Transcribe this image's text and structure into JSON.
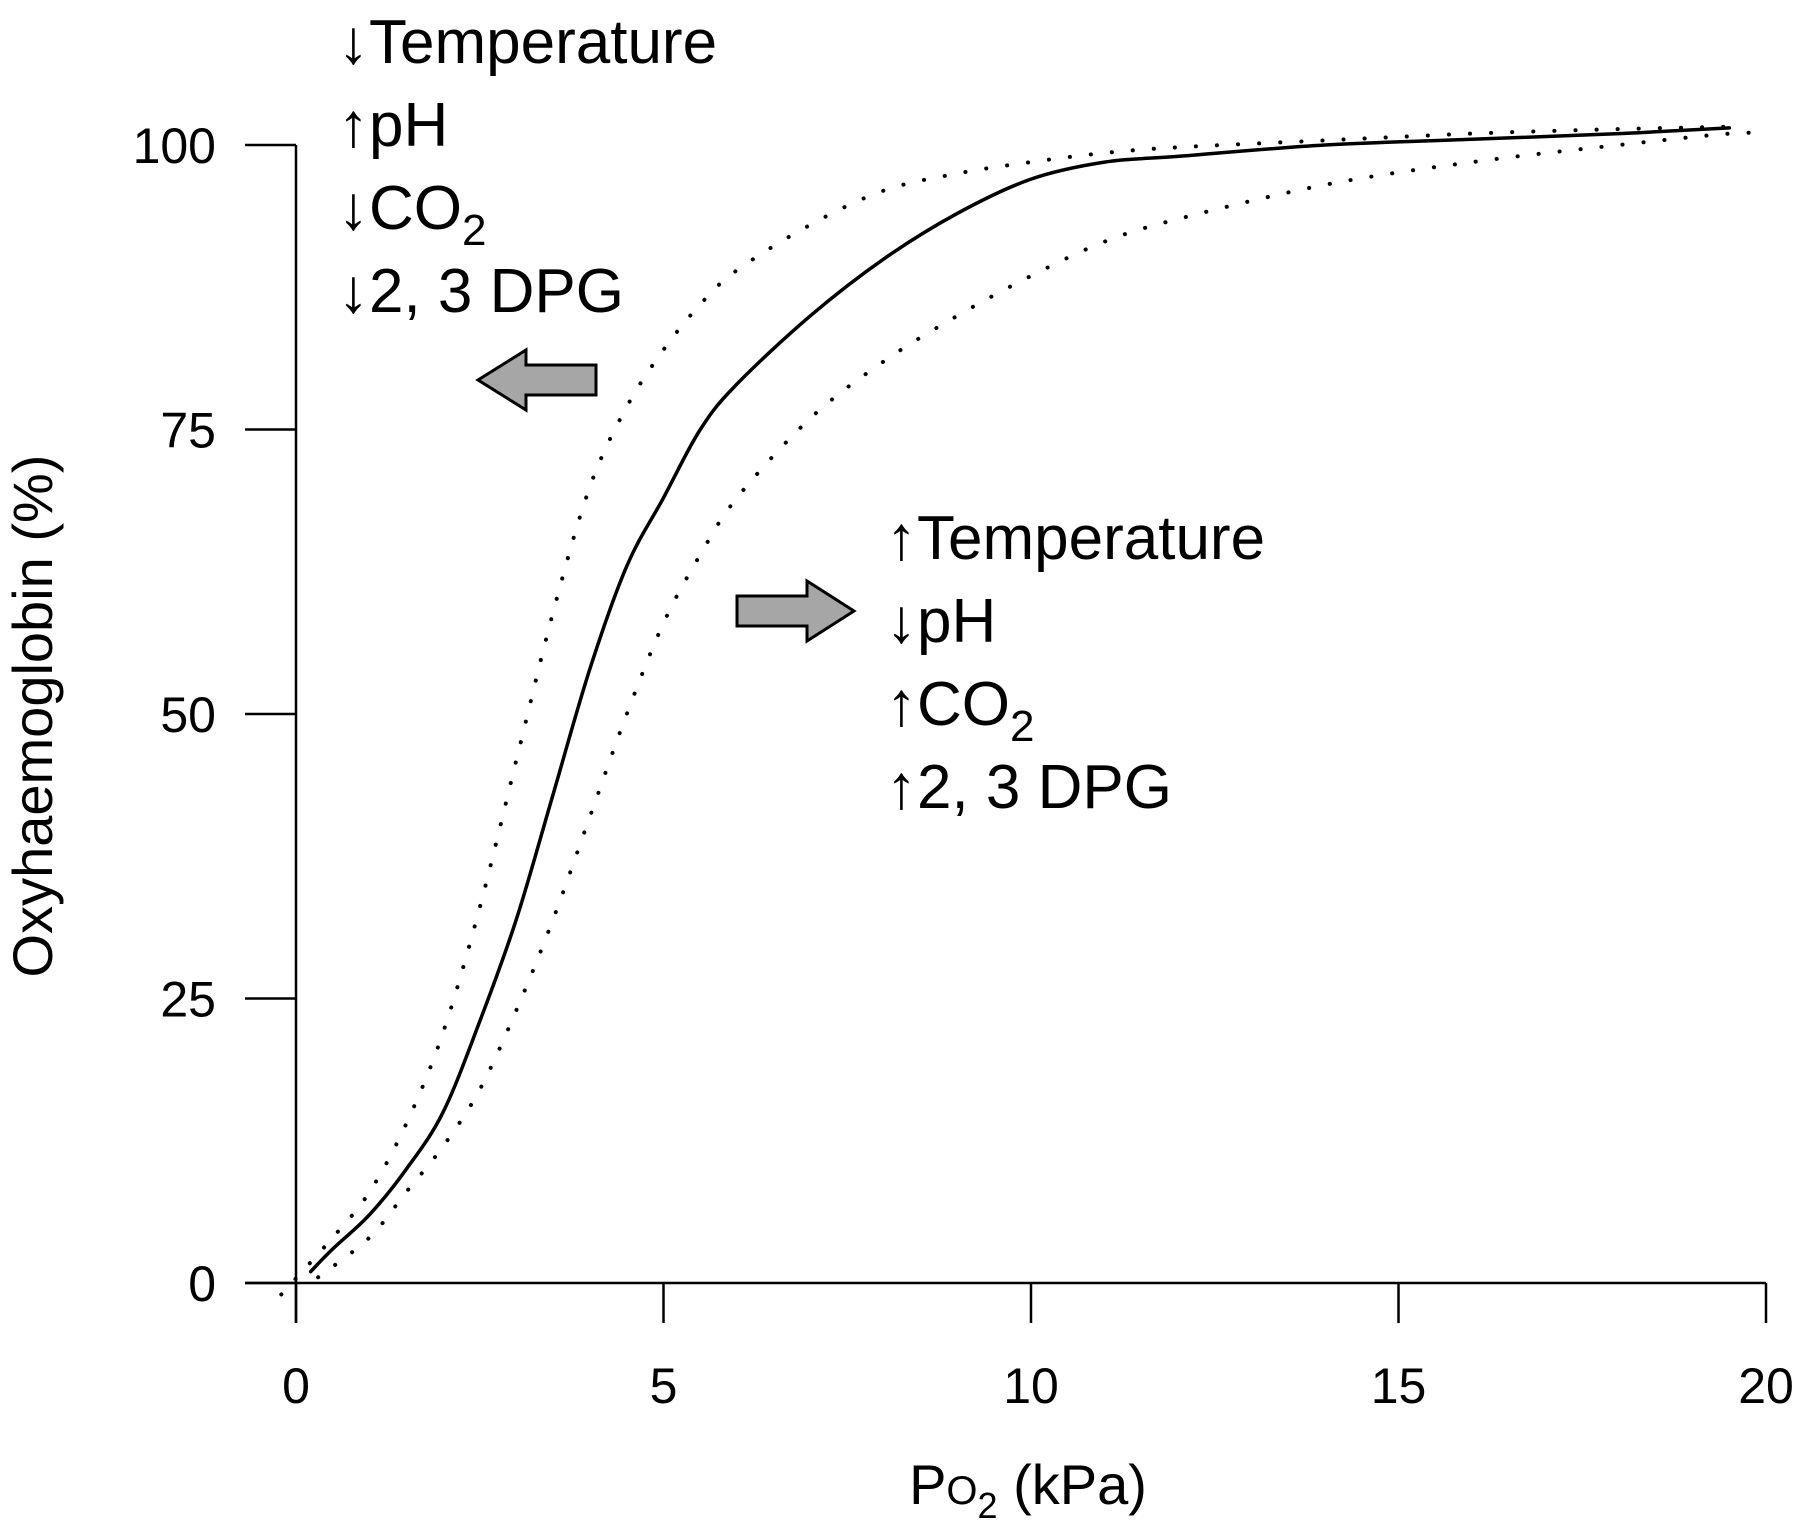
{
  "chart_data": {
    "type": "line",
    "xlabel": {
      "main": "P",
      "sub_o": "O",
      "sub_2": "2",
      "rest": " (kPa)"
    },
    "ylabel": "Oxyhaemoglobin (%)",
    "xlim": [
      0,
      20
    ],
    "ylim": [
      0,
      100
    ],
    "x_ticks": [
      "0",
      "5",
      "10",
      "15",
      "20"
    ],
    "y_ticks": [
      "0",
      "25",
      "50",
      "75",
      "100"
    ],
    "grid": false,
    "legend": "none",
    "series": [
      {
        "style": "solid",
        "x": [
          0.2,
          0.5,
          1,
          1.5,
          2,
          2.5,
          3,
          3.5,
          4,
          4.5,
          5,
          5.5,
          6,
          7,
          8,
          9,
          10,
          11,
          12,
          14,
          16,
          18,
          19.5
        ],
        "y": [
          1,
          3,
          6,
          10,
          15,
          23,
          32,
          43,
          54,
          63,
          69,
          75,
          79,
          85,
          90,
          94,
          97,
          98.5,
          99,
          100,
          100.5,
          101,
          101.5
        ]
      },
      {
        "style": "dotted",
        "x": [
          -0.2,
          0.5,
          1,
          1.5,
          2,
          2.5,
          3,
          3.5,
          4,
          4.5,
          5,
          5.5,
          6,
          7,
          8,
          9,
          10,
          11,
          12,
          14,
          16,
          18,
          19.5
        ],
        "y": [
          -1,
          4,
          8,
          14,
          22,
          33,
          46,
          59,
          70,
          77,
          82,
          86,
          89,
          93,
          96,
          97.5,
          98.5,
          99.3,
          99.8,
          100.4,
          101,
          101.4,
          101.6
        ]
      },
      {
        "style": "dotted",
        "x": [
          0.3,
          1,
          1.5,
          2,
          2.5,
          3,
          3.5,
          4,
          4.5,
          5,
          5.5,
          6,
          7,
          8,
          9,
          10,
          11,
          12,
          14,
          16,
          18,
          19.5,
          20
        ],
        "y": [
          0.5,
          4,
          8,
          12,
          17,
          24,
          32,
          41,
          50,
          58,
          64,
          69,
          76,
          81,
          85,
          88.5,
          91.5,
          93.5,
          96.5,
          98.5,
          100,
          101,
          101
        ]
      }
    ],
    "annotations": {
      "left_shift": {
        "arrow": "left",
        "lines": [
          {
            "arrow": "↓",
            "text": "Temperature",
            "sub": ""
          },
          {
            "arrow": "↑",
            "text": "pH",
            "sub": ""
          },
          {
            "arrow": "↓",
            "text": "CO",
            "sub": "2"
          },
          {
            "arrow": "↓",
            "text": "2, 3 DPG",
            "sub": ""
          }
        ]
      },
      "right_shift": {
        "arrow": "right",
        "lines": [
          {
            "arrow": "↑",
            "text": "Temperature",
            "sub": ""
          },
          {
            "arrow": "↓",
            "text": "pH",
            "sub": ""
          },
          {
            "arrow": "↑",
            "text": "CO",
            "sub": "2"
          },
          {
            "arrow": "↑",
            "text": "2, 3 DPG",
            "sub": ""
          }
        ]
      }
    },
    "colors": {
      "line": "#000000",
      "arrow_fill": "#a6a6a6"
    }
  }
}
